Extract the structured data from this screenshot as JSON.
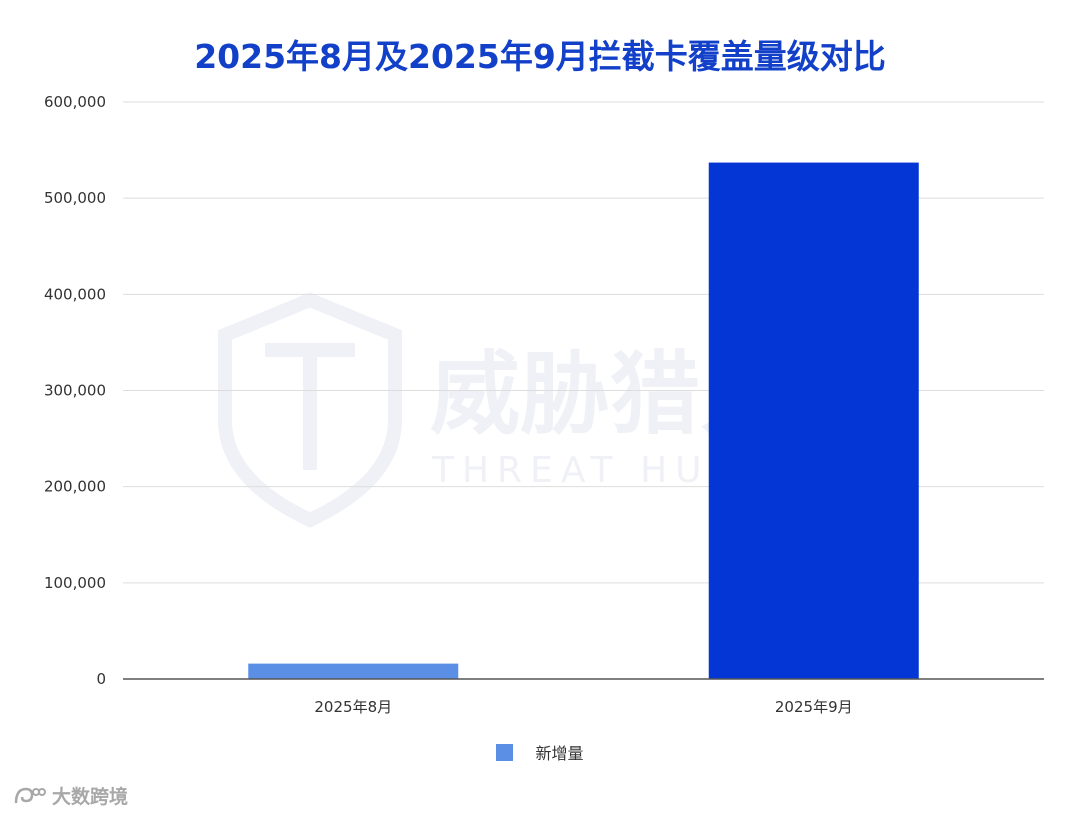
{
  "colors": {
    "title": "#1240c9",
    "bar_aug": "#5b8fe6",
    "bar_sep": "#0336d4",
    "grid": "#dddddd",
    "axis": "#555555"
  },
  "watermark": {
    "cn": "威胁猎人",
    "en": "THREAT HUNTER"
  },
  "footer_watermark": {
    "text": "大数跨境",
    "icon": "logo-icon"
  },
  "chart_data": {
    "type": "bar",
    "title": "2025年8月及2025年9月拦截卡覆盖量级对比",
    "categories": [
      "2025年8月",
      "2025年9月"
    ],
    "series": [
      {
        "name": "新增量",
        "values": [
          16000,
          537000
        ]
      }
    ],
    "ylim": [
      0,
      600000
    ],
    "yticks": [
      0,
      100000,
      200000,
      300000,
      400000,
      500000,
      600000
    ],
    "ytick_labels": [
      "0",
      "100,000",
      "200,000",
      "300,000",
      "400,000",
      "500,000",
      "600,000"
    ],
    "xlabel": "",
    "ylabel": "",
    "grid": true,
    "legend_position": "bottom"
  }
}
